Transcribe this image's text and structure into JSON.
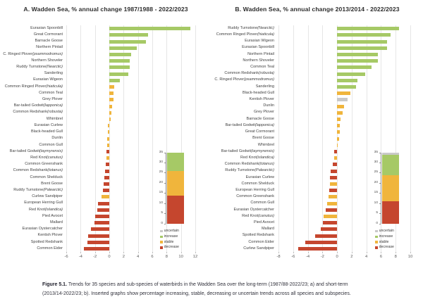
{
  "figure": {
    "caption_label": "Figure 5.1.",
    "caption_text": " Trends for 35 species and sub-species of waterbirds in the Wadden Sea over the long-term (1987/88-2022/23; a) and short-term (2013/14-2022/23; b). Inserted graphs show percentage increasing, stable, decreasing or uncertain trends across all species and subspecies."
  },
  "colors": {
    "increase": "#a6c966",
    "stable": "#f0b53c",
    "decrease": "#c5462e",
    "uncertain": "#c9c9c9",
    "grid": "#e6e6e6"
  },
  "chart_data": [
    {
      "type": "bar",
      "orientation": "horizontal",
      "title": "A. Wadden Sea, % annual change 1987/1988 - 2022/2023",
      "xlabel": "",
      "ylabel": "",
      "xlim": [
        -6,
        12
      ],
      "xticks": [
        -6,
        -4,
        -2,
        0,
        2,
        4,
        6,
        8,
        10,
        12
      ],
      "grid": true,
      "species": [
        {
          "name": "Eurasian Spoonbill",
          "value": 11.3,
          "status": "increase"
        },
        {
          "name": "Great Cormorant",
          "value": 5.4,
          "status": "increase"
        },
        {
          "name": "Barnacle Goose",
          "value": 5.1,
          "status": "increase"
        },
        {
          "name": "Northern Pintail",
          "value": 3.8,
          "status": "increase"
        },
        {
          "name": "C. Ringed Plover (psammodromus)",
          "value": 3.0,
          "status": "increase"
        },
        {
          "name": "Northern Shoveler",
          "value": 2.9,
          "status": "increase"
        },
        {
          "name": "Ruddy Turnstone (Nearctic)",
          "value": 2.85,
          "status": "increase"
        },
        {
          "name": "Sanderling",
          "value": 2.65,
          "status": "increase"
        },
        {
          "name": "Eurasian Wigeon",
          "value": 1.5,
          "status": "increase"
        },
        {
          "name": "Common Ringed Plover (hiaticula)",
          "value": 0.65,
          "status": "stable"
        },
        {
          "name": "Common Teal",
          "value": 0.6,
          "status": "stable"
        },
        {
          "name": "Grey Plover",
          "value": 0.55,
          "status": "stable"
        },
        {
          "name": "Bar-tailed Godwit (lapponica)",
          "value": 0.35,
          "status": "stable"
        },
        {
          "name": "Common Redshank (robusta)",
          "value": 0.25,
          "status": "stable"
        },
        {
          "name": "Whimbrel",
          "value": 0.15,
          "status": "stable"
        },
        {
          "name": "Eurasian Curlew",
          "value": -0.15,
          "status": "stable"
        },
        {
          "name": "Black-headed Gull",
          "value": -0.2,
          "status": "stable"
        },
        {
          "name": "Dunlin",
          "value": -0.25,
          "status": "stable"
        },
        {
          "name": "Common Gull",
          "value": -0.3,
          "status": "stable"
        },
        {
          "name": "Bar-tailed Godwit (taymyrensis)",
          "value": -0.4,
          "status": "decrease"
        },
        {
          "name": "Red Knot (canutus)",
          "value": -0.4,
          "status": "stable"
        },
        {
          "name": "Common Greenshank",
          "value": -0.5,
          "status": "decrease"
        },
        {
          "name": "Common Redshank (totanus)",
          "value": -0.6,
          "status": "decrease"
        },
        {
          "name": "Common Shelduck",
          "value": -0.7,
          "status": "decrease"
        },
        {
          "name": "Brent Goose",
          "value": -0.8,
          "status": "decrease"
        },
        {
          "name": "Ruddy Turnstone (Palearctic)",
          "value": -0.85,
          "status": "decrease"
        },
        {
          "name": "Curlew Sandpiper",
          "value": -1.1,
          "status": "stable"
        },
        {
          "name": "European Herring Gull",
          "value": -1.6,
          "status": "decrease"
        },
        {
          "name": "Red Knot (islandica)",
          "value": -1.65,
          "status": "decrease"
        },
        {
          "name": "Pied Avocet",
          "value": -2.0,
          "status": "decrease"
        },
        {
          "name": "Mallard",
          "value": -2.1,
          "status": "decrease"
        },
        {
          "name": "Eurasian Oystercatcher",
          "value": -2.55,
          "status": "decrease"
        },
        {
          "name": "Kentish Plover",
          "value": -3.0,
          "status": "decrease"
        },
        {
          "name": "Spotted Redshank",
          "value": -3.05,
          "status": "decrease"
        },
        {
          "name": "Common Eider",
          "value": -3.55,
          "status": "decrease"
        }
      ],
      "inset": {
        "type": "stacked-bar",
        "ylim": [
          0,
          35
        ],
        "yticks": [
          0,
          5,
          10,
          15,
          20,
          25,
          30,
          35
        ],
        "segments": [
          {
            "name": "decrease",
            "value": 14
          },
          {
            "name": "stable",
            "value": 12
          },
          {
            "name": "increase",
            "value": 9
          },
          {
            "name": "uncertain",
            "value": 0
          }
        ],
        "legend": [
          "uncertain",
          "increase",
          "stable",
          "decrease"
        ]
      }
    },
    {
      "type": "bar",
      "orientation": "horizontal",
      "title": "B. Wadden Sea, % annual change 2013/2014 - 2022/2023",
      "xlabel": "",
      "ylabel": "",
      "xlim": [
        -8,
        10
      ],
      "xticks": [
        -8,
        -6,
        -4,
        -2,
        0,
        2,
        4,
        6,
        8,
        10
      ],
      "grid": true,
      "species": [
        {
          "name": "Ruddy Turnstone (Nearctic)",
          "value": 8.45,
          "status": "increase"
        },
        {
          "name": "Common Ringed Plover (hiaticula)",
          "value": 7.35,
          "status": "increase"
        },
        {
          "name": "Eurasian Wigeon",
          "value": 6.85,
          "status": "increase"
        },
        {
          "name": "Eurasian Spoonbill",
          "value": 6.8,
          "status": "increase"
        },
        {
          "name": "Northern Pintail",
          "value": 5.6,
          "status": "increase"
        },
        {
          "name": "Northern Shoveler",
          "value": 5.55,
          "status": "increase"
        },
        {
          "name": "Common Teal",
          "value": 4.75,
          "status": "increase"
        },
        {
          "name": "Common Redshank (robusta)",
          "value": 3.85,
          "status": "increase"
        },
        {
          "name": "C. Ringed Plover (psammodromus)",
          "value": 2.8,
          "status": "increase"
        },
        {
          "name": "Sanderling",
          "value": 2.55,
          "status": "increase"
        },
        {
          "name": "Black-headed Gull",
          "value": 1.85,
          "status": "stable"
        },
        {
          "name": "Kentish Plover",
          "value": 1.4,
          "status": "uncertain"
        },
        {
          "name": "Dunlin",
          "value": 0.95,
          "status": "stable"
        },
        {
          "name": "Grey Plover",
          "value": 0.8,
          "status": "stable"
        },
        {
          "name": "Barnacle Goose",
          "value": 0.45,
          "status": "stable"
        },
        {
          "name": "Bar-tailed Godwit (lapponica)",
          "value": 0.4,
          "status": "stable"
        },
        {
          "name": "Great Cormorant",
          "value": 0.4,
          "status": "stable"
        },
        {
          "name": "Brent Goose",
          "value": 0.25,
          "status": "stable"
        },
        {
          "name": "Whimbrel",
          "value": 0.05,
          "status": "stable"
        },
        {
          "name": "Bar-tailed Godwit (taymyrensis)",
          "value": -0.4,
          "status": "decrease"
        },
        {
          "name": "Red Knot (islandica)",
          "value": -0.35,
          "status": "stable"
        },
        {
          "name": "Common Redshank (totanus)",
          "value": -0.6,
          "status": "decrease"
        },
        {
          "name": "Ruddy Turnstone (Palearctic)",
          "value": -0.9,
          "status": "decrease"
        },
        {
          "name": "Eurasian Curlew",
          "value": -0.95,
          "status": "decrease"
        },
        {
          "name": "Common Shelduck",
          "value": -1.0,
          "status": "stable"
        },
        {
          "name": "European Herring Gull",
          "value": -1.1,
          "status": "decrease"
        },
        {
          "name": "Common Greenshank",
          "value": -1.15,
          "status": "stable"
        },
        {
          "name": "Common Gull",
          "value": -1.35,
          "status": "stable"
        },
        {
          "name": "Eurasian Oystercatcher",
          "value": -1.55,
          "status": "decrease"
        },
        {
          "name": "Red Knot (canutus)",
          "value": -1.8,
          "status": "stable"
        },
        {
          "name": "Pied Avocet",
          "value": -1.95,
          "status": "decrease"
        },
        {
          "name": "Mallard",
          "value": -2.2,
          "status": "decrease"
        },
        {
          "name": "Spotted Redshank",
          "value": -2.95,
          "status": "decrease"
        },
        {
          "name": "Common Eider",
          "value": -4.3,
          "status": "decrease"
        },
        {
          "name": "Curlew Sandpiper",
          "value": -5.3,
          "status": "decrease"
        }
      ],
      "inset": {
        "type": "stacked-bar",
        "ylim": [
          0,
          35
        ],
        "yticks": [
          0,
          5,
          10,
          15,
          20,
          25,
          30,
          35
        ],
        "segments": [
          {
            "name": "decrease",
            "value": 11
          },
          {
            "name": "stable",
            "value": 13
          },
          {
            "name": "increase",
            "value": 10
          },
          {
            "name": "uncertain",
            "value": 1
          }
        ],
        "legend": [
          "uncertain",
          "increase",
          "stable",
          "decrease"
        ]
      }
    }
  ]
}
